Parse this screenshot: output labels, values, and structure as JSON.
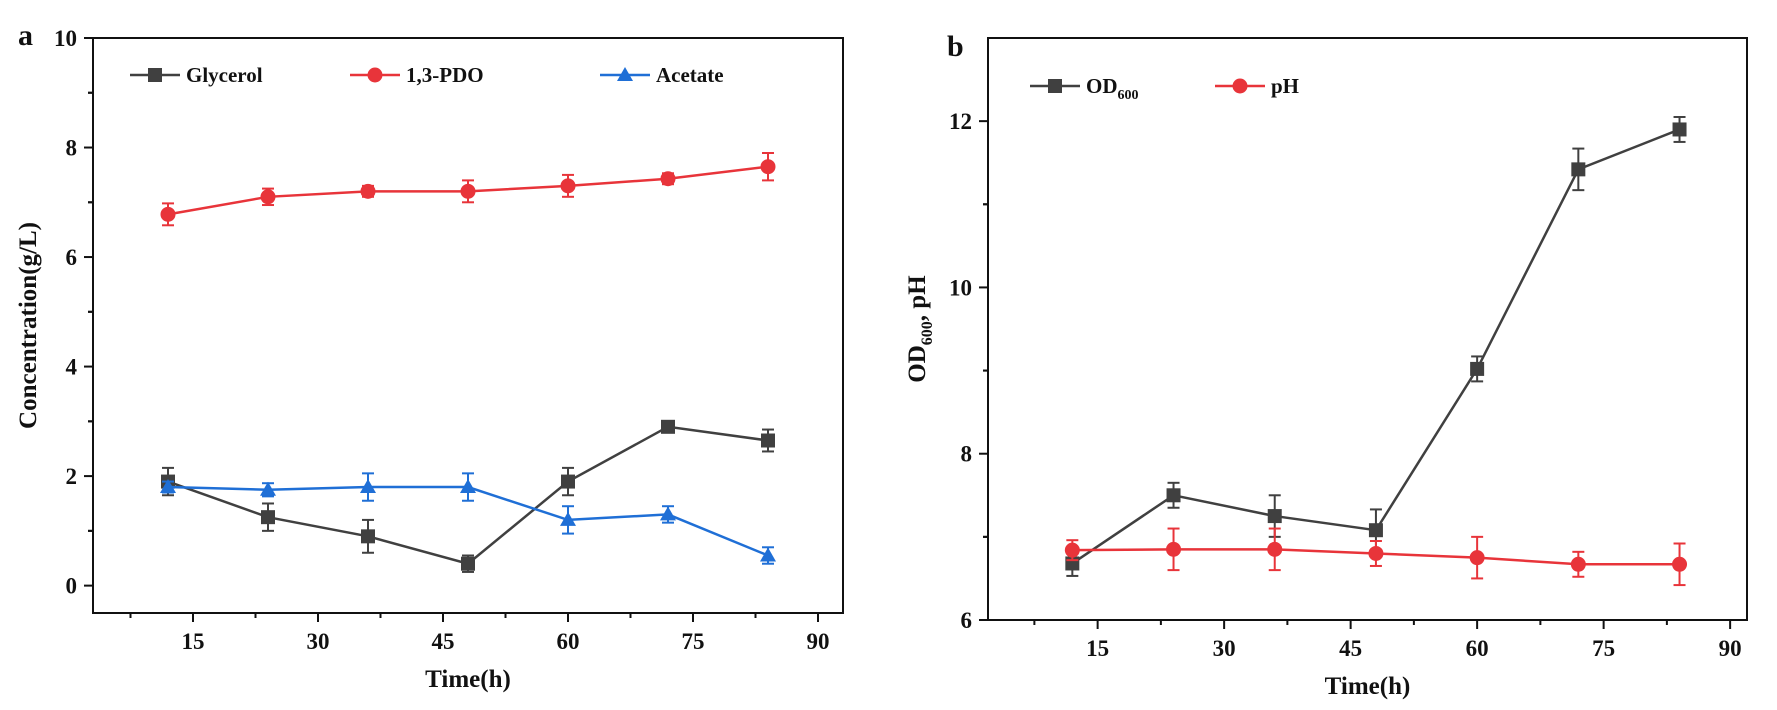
{
  "chart_data": [
    {
      "panel_label": "a",
      "type": "line",
      "xlabel": "Time(h)",
      "ylabel": "Concentration(g/L)",
      "xlim": [
        3,
        93
      ],
      "ylim": [
        -0.5,
        10
      ],
      "xticks": [
        15,
        30,
        45,
        60,
        75,
        90
      ],
      "yticks": [
        0,
        2,
        4,
        6,
        8,
        10
      ],
      "legend_position": "top-left",
      "grid": false,
      "series": [
        {
          "name": "Glycerol",
          "color": "#404040",
          "marker": "square",
          "x": [
            12,
            24,
            36,
            48,
            60,
            72,
            84
          ],
          "y": [
            1.9,
            1.25,
            0.9,
            0.4,
            1.9,
            2.9,
            2.65
          ],
          "err": [
            0.25,
            0.25,
            0.3,
            0.15,
            0.25,
            0.1,
            0.2
          ]
        },
        {
          "name": "1,3-PDO",
          "color": "#e8343a",
          "marker": "circle",
          "x": [
            12,
            24,
            36,
            48,
            60,
            72,
            84
          ],
          "y": [
            6.78,
            7.1,
            7.2,
            7.2,
            7.3,
            7.43,
            7.65
          ],
          "err": [
            0.2,
            0.15,
            0.1,
            0.2,
            0.2,
            0.1,
            0.25
          ]
        },
        {
          "name": "Acetate",
          "color": "#1f6fd6",
          "marker": "triangle",
          "x": [
            12,
            24,
            36,
            48,
            60,
            72,
            84
          ],
          "y": [
            1.8,
            1.75,
            1.8,
            1.8,
            1.2,
            1.3,
            0.55
          ],
          "err": [
            0.1,
            0.12,
            0.25,
            0.25,
            0.25,
            0.15,
            0.15
          ]
        }
      ]
    },
    {
      "panel_label": "b",
      "type": "line",
      "xlabel": "Time(h)",
      "ylabel_main": "OD",
      "ylabel_sub": "600",
      "ylabel_tail": ", pH",
      "xlim": [
        2,
        92
      ],
      "ylim": [
        6,
        13
      ],
      "xticks": [
        15,
        30,
        45,
        60,
        75,
        90
      ],
      "yticks": [
        6,
        8,
        10,
        12
      ],
      "legend_position": "top-left",
      "grid": false,
      "series": [
        {
          "name": "OD",
          "name_sub": "600",
          "color": "#404040",
          "marker": "square",
          "x": [
            12,
            24,
            36,
            48,
            60,
            72,
            84
          ],
          "y": [
            6.68,
            7.5,
            7.25,
            7.08,
            9.02,
            11.42,
            11.9
          ],
          "err": [
            0.15,
            0.15,
            0.25,
            0.25,
            0.15,
            0.25,
            0.15
          ]
        },
        {
          "name": "pH",
          "color": "#e8343a",
          "marker": "circle",
          "x": [
            12,
            24,
            36,
            48,
            60,
            72,
            84
          ],
          "y": [
            6.84,
            6.85,
            6.85,
            6.8,
            6.75,
            6.67,
            6.67
          ],
          "err": [
            0.12,
            0.25,
            0.25,
            0.15,
            0.25,
            0.15,
            0.25
          ]
        }
      ]
    }
  ]
}
